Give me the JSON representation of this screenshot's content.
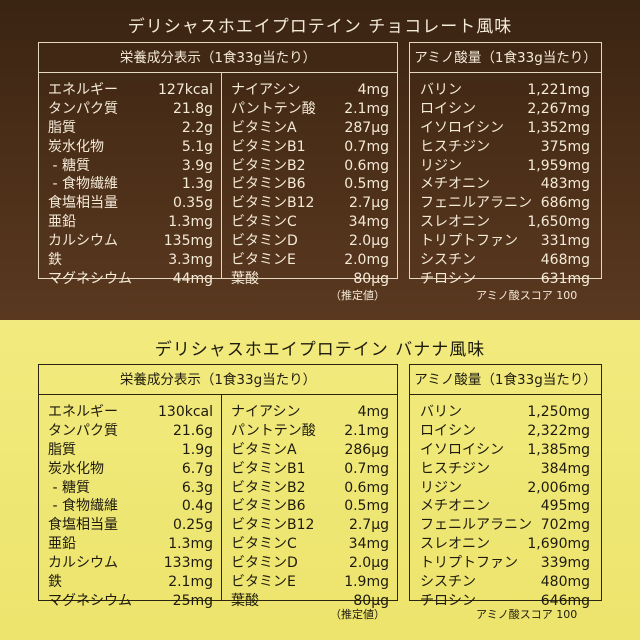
{
  "panels": [
    {
      "id": "chocolate",
      "title": "デリシャスホエイプロテイン チョコレート風味",
      "nutrition_header": "栄養成分表示（1食33g当たり）",
      "amino_header": "アミノ酸量（1食33g当たり）",
      "nutrition_left": [
        {
          "label": "エネルギー",
          "value": "127kcal"
        },
        {
          "label": "タンパク質",
          "value": "21.8g"
        },
        {
          "label": "脂質",
          "value": "2.2g"
        },
        {
          "label": "炭水化物",
          "value": "5.1g"
        },
        {
          "label": " - 糖質",
          "value": "3.9g"
        },
        {
          "label": " - 食物繊維",
          "value": "1.3g"
        },
        {
          "label": "食塩相当量",
          "value": "0.35g"
        },
        {
          "label": "亜鉛",
          "value": "1.3mg"
        },
        {
          "label": "カルシウム",
          "value": "135mg"
        },
        {
          "label": "鉄",
          "value": "3.3mg"
        },
        {
          "label": "マグネシウム",
          "value": "44mg"
        }
      ],
      "nutrition_right": [
        {
          "label": "ナイアシン",
          "value": "4mg"
        },
        {
          "label": "パントテン酸",
          "value": "2.1mg"
        },
        {
          "label": "ビタミンA",
          "value": "287μg"
        },
        {
          "label": "ビタミンB1",
          "value": "0.7mg"
        },
        {
          "label": "ビタミンB2",
          "value": "0.6mg"
        },
        {
          "label": "ビタミンB6",
          "value": "0.5mg"
        },
        {
          "label": "ビタミンB12",
          "value": "2.7μg"
        },
        {
          "label": "ビタミンC",
          "value": "34mg"
        },
        {
          "label": "ビタミンD",
          "value": "2.0μg"
        },
        {
          "label": "ビタミンE",
          "value": "2.0mg"
        },
        {
          "label": "葉酸",
          "value": "80μg"
        }
      ],
      "amino": [
        {
          "label": "バリン",
          "value": "1,221mg"
        },
        {
          "label": "ロイシン",
          "value": "2,267mg"
        },
        {
          "label": "イソロイシン",
          "value": "1,352mg"
        },
        {
          "label": "ヒスチジン",
          "value": "375mg"
        },
        {
          "label": "リジン",
          "value": "1,959mg"
        },
        {
          "label": "メチオニン",
          "value": "483mg"
        },
        {
          "label": "フェニルアラニン",
          "value": "686mg"
        },
        {
          "label": "スレオニン",
          "value": "1,650mg"
        },
        {
          "label": "トリプトファン",
          "value": "331mg"
        },
        {
          "label": "シスチン",
          "value": "468mg"
        },
        {
          "label": "チロシン",
          "value": "631mg"
        }
      ],
      "note": "（推定値）",
      "amino_score": "アミノ酸スコア 100"
    },
    {
      "id": "banana",
      "title": "デリシャスホエイプロテイン バナナ風味",
      "nutrition_header": "栄養成分表示（1食33g当たり）",
      "amino_header": "アミノ酸量（1食33g当たり）",
      "nutrition_left": [
        {
          "label": "エネルギー",
          "value": "130kcal"
        },
        {
          "label": "タンパク質",
          "value": "21.6g"
        },
        {
          "label": "脂質",
          "value": "1.9g"
        },
        {
          "label": "炭水化物",
          "value": "6.7g"
        },
        {
          "label": " - 糖質",
          "value": "6.3g"
        },
        {
          "label": " - 食物繊維",
          "value": "0.4g"
        },
        {
          "label": "食塩相当量",
          "value": "0.25g"
        },
        {
          "label": "亜鉛",
          "value": "1.3mg"
        },
        {
          "label": "カルシウム",
          "value": "133mg"
        },
        {
          "label": "鉄",
          "value": "2.1mg"
        },
        {
          "label": "マグネシウム",
          "value": "25mg"
        }
      ],
      "nutrition_right": [
        {
          "label": "ナイアシン",
          "value": "4mg"
        },
        {
          "label": "パントテン酸",
          "value": "2.1mg"
        },
        {
          "label": "ビタミンA",
          "value": "286μg"
        },
        {
          "label": "ビタミンB1",
          "value": "0.7mg"
        },
        {
          "label": "ビタミンB2",
          "value": "0.6mg"
        },
        {
          "label": "ビタミンB6",
          "value": "0.5mg"
        },
        {
          "label": "ビタミンB12",
          "value": "2.7μg"
        },
        {
          "label": "ビタミンC",
          "value": "34mg"
        },
        {
          "label": "ビタミンD",
          "value": "2.0μg"
        },
        {
          "label": "ビタミンE",
          "value": "1.9mg"
        },
        {
          "label": "葉酸",
          "value": "80μg"
        }
      ],
      "amino": [
        {
          "label": "バリン",
          "value": "1,250mg"
        },
        {
          "label": "ロイシン",
          "value": "2,322mg"
        },
        {
          "label": "イソロイシン",
          "value": "1,385mg"
        },
        {
          "label": "ヒスチジン",
          "value": "384mg"
        },
        {
          "label": "リジン",
          "value": "2,006mg"
        },
        {
          "label": "メチオニン",
          "value": "495mg"
        },
        {
          "label": "フェニルアラニン",
          "value": "702mg"
        },
        {
          "label": "スレオニン",
          "value": "1,690mg"
        },
        {
          "label": "トリプトファン",
          "value": "339mg"
        },
        {
          "label": "シスチン",
          "value": "480mg"
        },
        {
          "label": "チロシン",
          "value": "646mg"
        }
      ],
      "note": "（推定値）",
      "amino_score": "アミノ酸スコア 100"
    }
  ]
}
